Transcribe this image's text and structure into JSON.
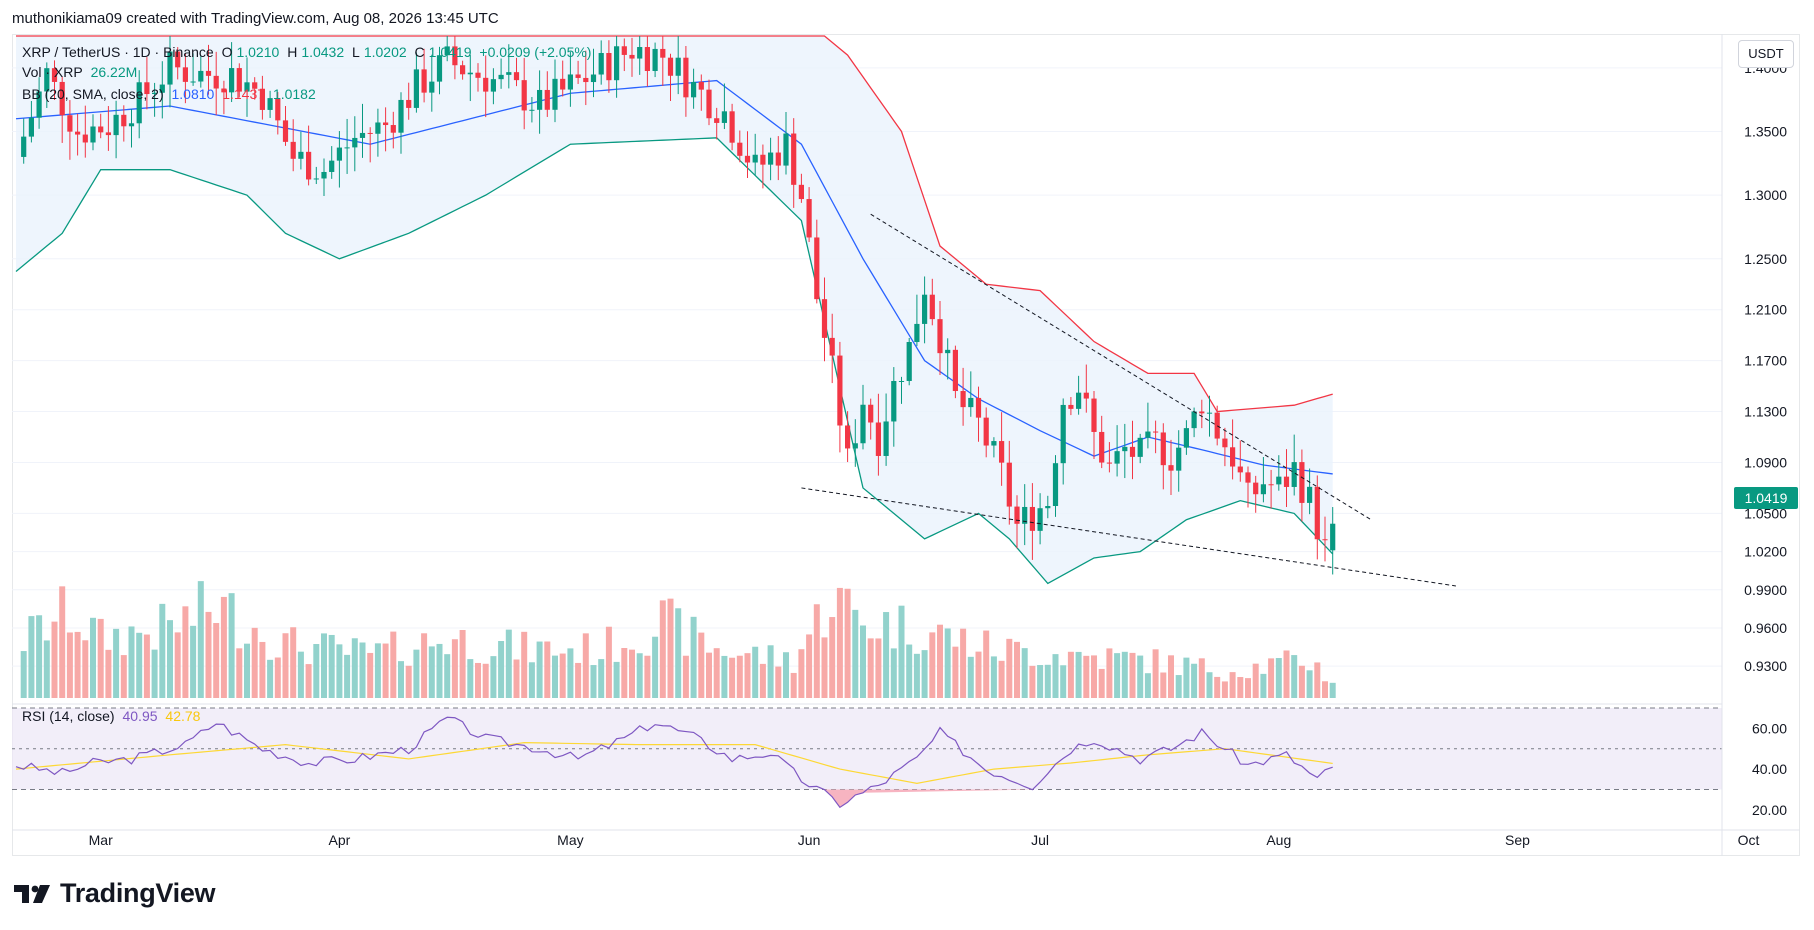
{
  "header": {
    "text": "muthonikiama09 created with TradingView.com, Aug 08, 2026 13:45 UTC"
  },
  "legend": {
    "symbol": "XRP / TetherUS · 1D · Binance",
    "o_label": "O",
    "o_value": "1.0210",
    "h_label": "H",
    "h_value": "1.0432",
    "l_label": "L",
    "l_value": "1.0202",
    "c_label": "C",
    "c_value": "1.0419",
    "change": "+0.0209 (+2.05%)",
    "vol_label": "Vol · XRP",
    "vol_value": "26.22M",
    "bb_label": "BB (20, SMA, close, 2)",
    "bb_basis": "1.0810",
    "bb_upper": "1.1437",
    "bb_lower": "1.0182",
    "rsi_label": "RSI (14, close)",
    "rsi_value": "40.95",
    "rsi_ma": "42.78"
  },
  "price_scale": {
    "unit_button": "USDT",
    "last_price": "1.0419"
  },
  "branding": {
    "logo_text": "TradingView"
  },
  "colors": {
    "up": "#089981",
    "down": "#f23645",
    "up_vol": "#92d2cc",
    "down_vol": "#f7a9a7",
    "bb_basis": "#2962ff",
    "bb_upper": "#f23645",
    "bb_lower": "#089981",
    "bb_fill": "#eaf3fc",
    "rsi": "#7e57c2",
    "rsi_ma": "#fdd835",
    "rsi_band": "#ede7f6"
  },
  "chart_data": {
    "type": "candlestick",
    "title": "XRP / TetherUS · 1D · Binance",
    "ylim": [
      0.905,
      1.425
    ],
    "y_ticks": [
      "0.9300",
      "0.9600",
      "0.9900",
      "1.0200",
      "1.0500",
      "1.0900",
      "1.1300",
      "1.1700",
      "1.2100",
      "1.2500",
      "1.3000",
      "1.3500",
      "1.4000"
    ],
    "x_ticks": [
      "Mar",
      "Apr",
      "May",
      "Jun",
      "Jul",
      "Aug",
      "Sep",
      "Oct"
    ],
    "start_date": "2026-02-18",
    "last_date": "2026-08-08",
    "ohlc_anchors": [
      [
        "2026-02-18",
        1.33
      ],
      [
        "2026-02-22",
        1.395
      ],
      [
        "2026-02-26",
        1.35
      ],
      [
        "2026-03-02",
        1.355
      ],
      [
        "2026-03-06",
        1.375
      ],
      [
        "2026-03-10",
        1.4
      ],
      [
        "2026-03-14",
        1.395
      ],
      [
        "2026-03-18",
        1.395
      ],
      [
        "2026-03-22",
        1.38
      ],
      [
        "2026-03-26",
        1.33
      ],
      [
        "2026-03-30",
        1.32
      ],
      [
        "2026-04-03",
        1.345
      ],
      [
        "2026-04-07",
        1.355
      ],
      [
        "2026-04-11",
        1.385
      ],
      [
        "2026-04-15",
        1.405
      ],
      [
        "2026-04-19",
        1.395
      ],
      [
        "2026-04-23",
        1.385
      ],
      [
        "2026-04-27",
        1.37
      ],
      [
        "2026-05-01",
        1.385
      ],
      [
        "2026-05-05",
        1.4
      ],
      [
        "2026-05-09",
        1.415
      ],
      [
        "2026-05-13",
        1.41
      ],
      [
        "2026-05-17",
        1.385
      ],
      [
        "2026-05-21",
        1.365
      ],
      [
        "2026-05-25",
        1.32
      ],
      [
        "2026-05-29",
        1.34
      ],
      [
        "2026-05-31",
        1.3
      ],
      [
        "2026-06-02",
        1.22
      ],
      [
        "2026-06-04",
        1.16
      ],
      [
        "2026-06-06",
        1.09
      ],
      [
        "2026-06-08",
        1.14
      ],
      [
        "2026-06-10",
        1.11
      ],
      [
        "2026-06-12",
        1.15
      ],
      [
        "2026-06-14",
        1.18
      ],
      [
        "2026-06-16",
        1.23
      ],
      [
        "2026-06-18",
        1.19
      ],
      [
        "2026-06-20",
        1.14
      ],
      [
        "2026-06-23",
        1.12
      ],
      [
        "2026-06-26",
        1.08
      ],
      [
        "2026-06-28",
        1.04
      ],
      [
        "2026-06-30",
        1.05
      ],
      [
        "2026-07-02",
        1.06
      ],
      [
        "2026-07-04",
        1.14
      ],
      [
        "2026-07-06",
        1.15
      ],
      [
        "2026-07-08",
        1.11
      ],
      [
        "2026-07-10",
        1.085
      ],
      [
        "2026-07-12",
        1.1
      ],
      [
        "2026-07-14",
        1.095
      ],
      [
        "2026-07-16",
        1.105
      ],
      [
        "2026-07-18",
        1.095
      ],
      [
        "2026-07-20",
        1.11
      ],
      [
        "2026-07-22",
        1.14
      ],
      [
        "2026-07-24",
        1.115
      ],
      [
        "2026-07-26",
        1.095
      ],
      [
        "2026-07-28",
        1.06
      ],
      [
        "2026-07-30",
        1.075
      ],
      [
        "2026-08-01",
        1.07
      ],
      [
        "2026-08-03",
        1.085
      ],
      [
        "2026-08-05",
        1.06
      ],
      [
        "2026-08-07",
        1.021
      ],
      [
        "2026-08-08",
        1.0419
      ]
    ],
    "bollinger_anchors": {
      "upper": [
        [
          "2026-02-18",
          1.48
        ],
        [
          "2026-03-10",
          1.47
        ],
        [
          "2026-04-05",
          1.45
        ],
        [
          "2026-05-01",
          1.45
        ],
        [
          "2026-05-31",
          1.44
        ],
        [
          "2026-06-06",
          1.41
        ],
        [
          "2026-06-13",
          1.35
        ],
        [
          "2026-06-18",
          1.26
        ],
        [
          "2026-06-24",
          1.23
        ],
        [
          "2026-07-01",
          1.225
        ],
        [
          "2026-07-08",
          1.185
        ],
        [
          "2026-07-15",
          1.16
        ],
        [
          "2026-07-21",
          1.16
        ],
        [
          "2026-07-24",
          1.13
        ],
        [
          "2026-08-03",
          1.135
        ],
        [
          "2026-08-08",
          1.1437
        ]
      ],
      "basis": [
        [
          "2026-02-18",
          1.36
        ],
        [
          "2026-03-10",
          1.37
        ],
        [
          "2026-04-05",
          1.34
        ],
        [
          "2026-05-01",
          1.38
        ],
        [
          "2026-05-20",
          1.39
        ],
        [
          "2026-05-31",
          1.34
        ],
        [
          "2026-06-08",
          1.25
        ],
        [
          "2026-06-16",
          1.17
        ],
        [
          "2026-06-23",
          1.14
        ],
        [
          "2026-07-01",
          1.115
        ],
        [
          "2026-07-08",
          1.095
        ],
        [
          "2026-07-15",
          1.11
        ],
        [
          "2026-07-22",
          1.1
        ],
        [
          "2026-07-30",
          1.088
        ],
        [
          "2026-08-08",
          1.081
        ]
      ],
      "lower": [
        [
          "2026-02-18",
          1.24
        ],
        [
          "2026-02-24",
          1.27
        ],
        [
          "2026-03-01",
          1.32
        ],
        [
          "2026-03-10",
          1.32
        ],
        [
          "2026-03-20",
          1.3
        ],
        [
          "2026-03-25",
          1.27
        ],
        [
          "2026-04-01",
          1.25
        ],
        [
          "2026-04-10",
          1.27
        ],
        [
          "2026-04-20",
          1.3
        ],
        [
          "2026-05-01",
          1.34
        ],
        [
          "2026-05-20",
          1.345
        ],
        [
          "2026-05-31",
          1.28
        ],
        [
          "2026-06-08",
          1.07
        ],
        [
          "2026-06-16",
          1.03
        ],
        [
          "2026-06-23",
          1.05
        ],
        [
          "2026-06-27",
          1.03
        ],
        [
          "2026-07-02",
          0.995
        ],
        [
          "2026-07-08",
          1.015
        ],
        [
          "2026-07-14",
          1.02
        ],
        [
          "2026-07-20",
          1.045
        ],
        [
          "2026-07-27",
          1.06
        ],
        [
          "2026-08-03",
          1.05
        ],
        [
          "2026-08-08",
          1.0182
        ]
      ]
    },
    "trendlines": [
      {
        "from": [
          "2026-06-09",
          1.285
        ],
        "to": [
          "2026-08-13",
          1.045
        ]
      },
      {
        "from": [
          "2026-05-31",
          1.07
        ],
        "to": [
          "2026-08-24",
          0.993
        ]
      }
    ],
    "volume": {
      "unit": "XRP",
      "last": "26.22M",
      "anchors": [
        [
          "2026-02-18",
          1.0
        ],
        [
          "2026-02-25",
          1.6
        ],
        [
          "2026-03-01",
          1.1
        ],
        [
          "2026-03-10",
          1.3
        ],
        [
          "2026-03-16",
          1.7
        ],
        [
          "2026-03-25",
          1.0
        ],
        [
          "2026-04-05",
          0.8
        ],
        [
          "2026-04-15",
          1.1
        ],
        [
          "2026-04-25",
          0.9
        ],
        [
          "2026-05-05",
          0.9
        ],
        [
          "2026-05-13",
          1.4
        ],
        [
          "2026-05-20",
          0.9
        ],
        [
          "2026-05-30",
          0.7
        ],
        [
          "2026-06-04",
          1.9
        ],
        [
          "2026-06-08",
          1.4
        ],
        [
          "2026-06-15",
          1.3
        ],
        [
          "2026-06-25",
          0.9
        ],
        [
          "2026-07-05",
          0.8
        ],
        [
          "2026-07-15",
          0.7
        ],
        [
          "2026-07-25",
          0.5
        ],
        [
          "2026-08-05",
          0.7
        ],
        [
          "2026-08-08",
          0.3
        ]
      ]
    },
    "rsi": {
      "ylim": [
        15,
        70
      ],
      "y_ticks": [
        "60.00",
        "40.00",
        "20.00"
      ],
      "bands": [
        30,
        50,
        70
      ],
      "last": 40.95,
      "ma_last": 42.78,
      "anchors": [
        [
          "2026-02-18",
          42
        ],
        [
          "2026-02-24",
          38
        ],
        [
          "2026-02-28",
          43
        ],
        [
          "2026-03-05",
          45
        ],
        [
          "2026-03-12",
          52
        ],
        [
          "2026-03-16",
          63
        ],
        [
          "2026-03-22",
          50
        ],
        [
          "2026-03-28",
          43
        ],
        [
          "2026-04-03",
          45
        ],
        [
          "2026-04-10",
          50
        ],
        [
          "2026-04-15",
          65
        ],
        [
          "2026-04-20",
          55
        ],
        [
          "2026-04-27",
          50
        ],
        [
          "2026-05-02",
          45
        ],
        [
          "2026-05-08",
          55
        ],
        [
          "2026-05-12",
          63
        ],
        [
          "2026-05-17",
          56
        ],
        [
          "2026-05-22",
          45
        ],
        [
          "2026-05-27",
          48
        ],
        [
          "2026-05-31",
          35
        ],
        [
          "2026-06-05",
          23
        ],
        [
          "2026-06-10",
          32
        ],
        [
          "2026-06-15",
          45
        ],
        [
          "2026-06-18",
          58
        ],
        [
          "2026-06-24",
          40
        ],
        [
          "2026-06-30",
          32
        ],
        [
          "2026-07-05",
          50
        ],
        [
          "2026-07-08",
          55
        ],
        [
          "2026-07-14",
          45
        ],
        [
          "2026-07-18",
          50
        ],
        [
          "2026-07-22",
          58
        ],
        [
          "2026-07-28",
          42
        ],
        [
          "2026-08-02",
          47
        ],
        [
          "2026-08-06",
          35
        ],
        [
          "2026-08-08",
          40.95
        ]
      ],
      "ma_anchors": [
        [
          "2026-02-18",
          40
        ],
        [
          "2026-03-10",
          47
        ],
        [
          "2026-03-25",
          52
        ],
        [
          "2026-04-10",
          45
        ],
        [
          "2026-04-25",
          53
        ],
        [
          "2026-05-10",
          52
        ],
        [
          "2026-05-25",
          52
        ],
        [
          "2026-06-05",
          40
        ],
        [
          "2026-06-15",
          33
        ],
        [
          "2026-06-25",
          40
        ],
        [
          "2026-07-05",
          43
        ],
        [
          "2026-07-15",
          47
        ],
        [
          "2026-07-25",
          50
        ],
        [
          "2026-08-08",
          42.78
        ]
      ]
    }
  }
}
